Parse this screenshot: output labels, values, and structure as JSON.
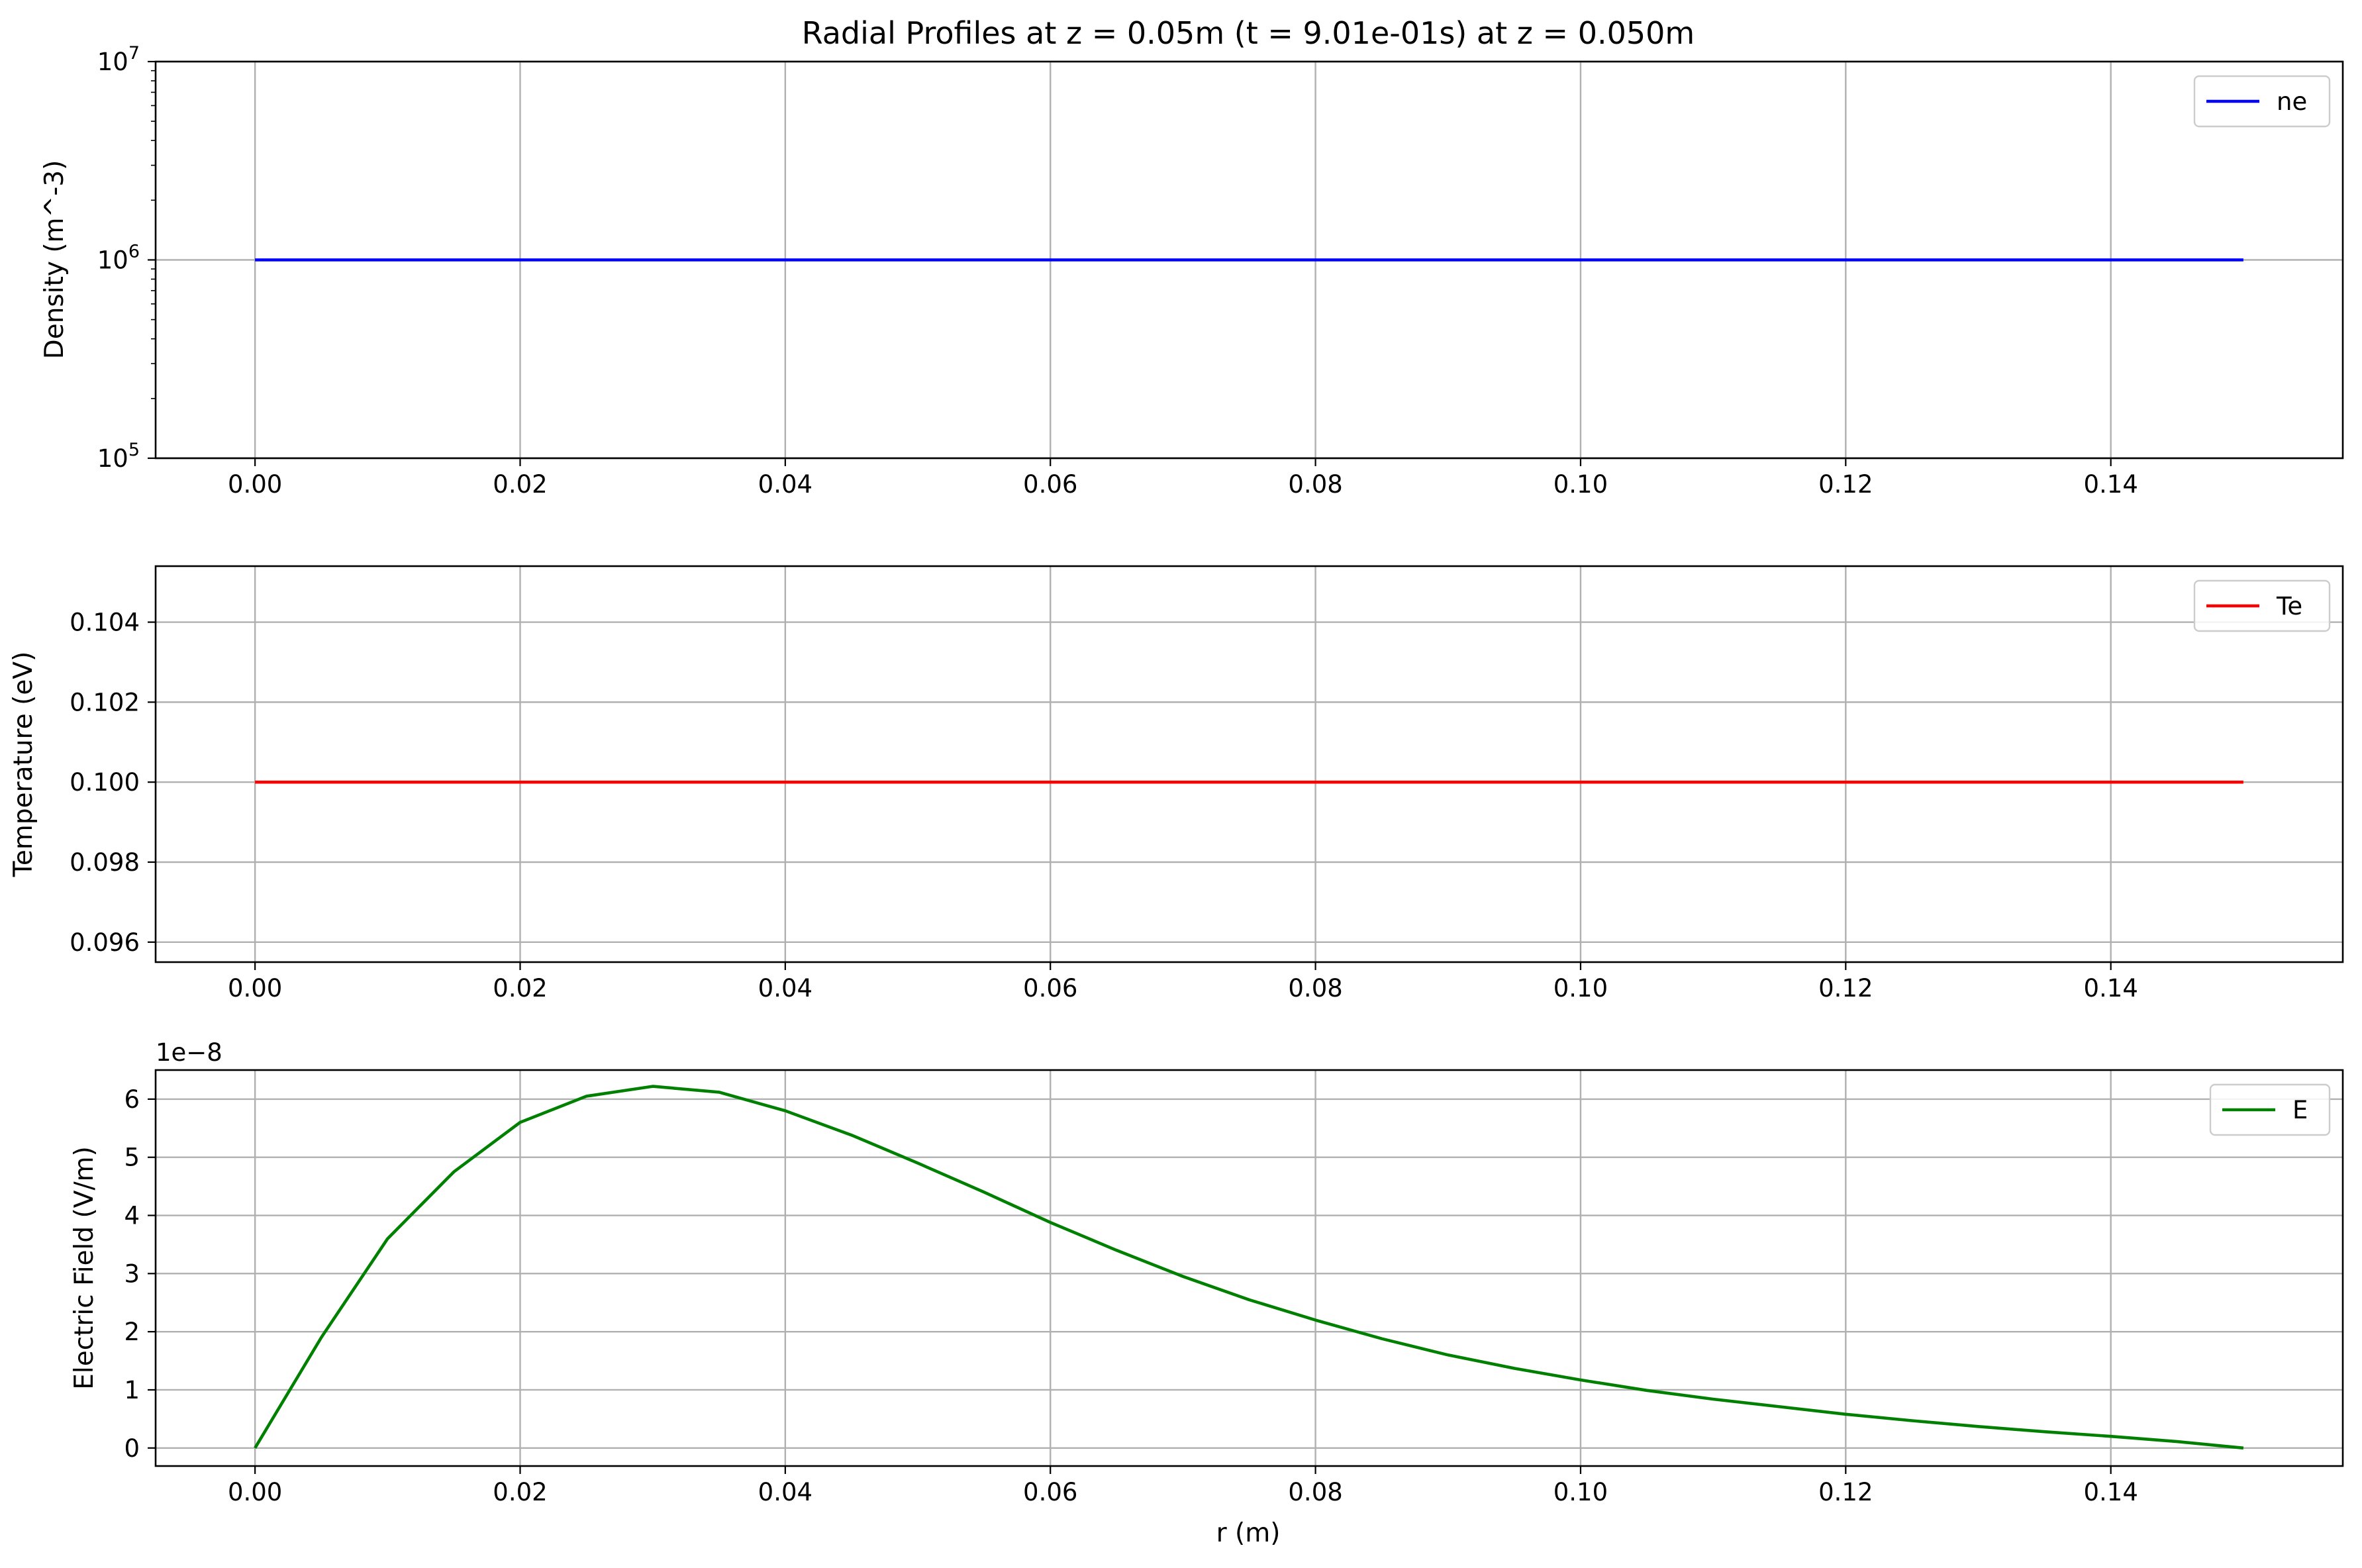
{
  "figure": {
    "title": "Radial Profiles at z = 0.05m (t = 9.01e-01s) at z = 0.050m",
    "xlabel": "r (m)"
  },
  "chart_data": [
    {
      "type": "line",
      "ylabel": "Density (m^-3)",
      "yscale": "log",
      "ylim": [
        100000,
        10000000
      ],
      "xlim": [
        -0.0075,
        0.1575
      ],
      "x_ticks": [
        "0.00",
        "0.02",
        "0.04",
        "0.06",
        "0.08",
        "0.10",
        "0.12",
        "0.14"
      ],
      "y_ticks": [
        {
          "value": 100000,
          "base": "10",
          "exp": "5"
        },
        {
          "value": 1000000,
          "base": "10",
          "exp": "6"
        },
        {
          "value": 10000000,
          "base": "10",
          "exp": "7"
        }
      ],
      "grid": true,
      "legend": "upper-right",
      "series": [
        {
          "name": "ne",
          "color": "#0000ff",
          "x": [
            0.0,
            0.15
          ],
          "y": [
            1000000,
            1000000
          ]
        }
      ]
    },
    {
      "type": "line",
      "ylabel": "Temperature (eV)",
      "yscale": "linear",
      "ylim": [
        0.0955,
        0.1054
      ],
      "xlim": [
        -0.0075,
        0.1575
      ],
      "x_ticks": [
        "0.00",
        "0.02",
        "0.04",
        "0.06",
        "0.08",
        "0.10",
        "0.12",
        "0.14"
      ],
      "y_ticks": [
        {
          "value": 0.096,
          "label": "0.096"
        },
        {
          "value": 0.098,
          "label": "0.098"
        },
        {
          "value": 0.1,
          "label": "0.100"
        },
        {
          "value": 0.102,
          "label": "0.102"
        },
        {
          "value": 0.104,
          "label": "0.104"
        }
      ],
      "grid": true,
      "legend": "upper-right",
      "series": [
        {
          "name": "Te",
          "color": "#ff0000",
          "x": [
            0.0,
            0.15
          ],
          "y": [
            0.1,
            0.1
          ]
        }
      ]
    },
    {
      "type": "line",
      "ylabel": "Electric Field (V/m)",
      "yscale": "linear",
      "y_multiplier": "1e−8",
      "ylim": [
        -0.31,
        6.5
      ],
      "xlim": [
        -0.0075,
        0.1575
      ],
      "x_ticks": [
        "0.00",
        "0.02",
        "0.04",
        "0.06",
        "0.08",
        "0.10",
        "0.12",
        "0.14"
      ],
      "y_ticks": [
        {
          "value": 0,
          "label": "0"
        },
        {
          "value": 1,
          "label": "1"
        },
        {
          "value": 2,
          "label": "2"
        },
        {
          "value": 3,
          "label": "3"
        },
        {
          "value": 4,
          "label": "4"
        },
        {
          "value": 5,
          "label": "5"
        },
        {
          "value": 6,
          "label": "6"
        }
      ],
      "grid": true,
      "legend": "upper-right",
      "series": [
        {
          "name": "E",
          "color": "#008000",
          "x": [
            0.0,
            0.005,
            0.01,
            0.015,
            0.02,
            0.025,
            0.03,
            0.035,
            0.04,
            0.045,
            0.05,
            0.055,
            0.06,
            0.065,
            0.07,
            0.075,
            0.08,
            0.085,
            0.09,
            0.095,
            0.1,
            0.105,
            0.11,
            0.115,
            0.12,
            0.125,
            0.13,
            0.135,
            0.14,
            0.145,
            0.15
          ],
          "y": [
            0.0,
            1.9,
            3.6,
            4.75,
            5.6,
            6.05,
            6.22,
            6.12,
            5.8,
            5.38,
            4.9,
            4.4,
            3.88,
            3.4,
            2.95,
            2.55,
            2.2,
            1.88,
            1.6,
            1.37,
            1.17,
            0.99,
            0.84,
            0.71,
            0.58,
            0.47,
            0.37,
            0.28,
            0.2,
            0.11,
            0.0
          ]
        }
      ]
    }
  ]
}
